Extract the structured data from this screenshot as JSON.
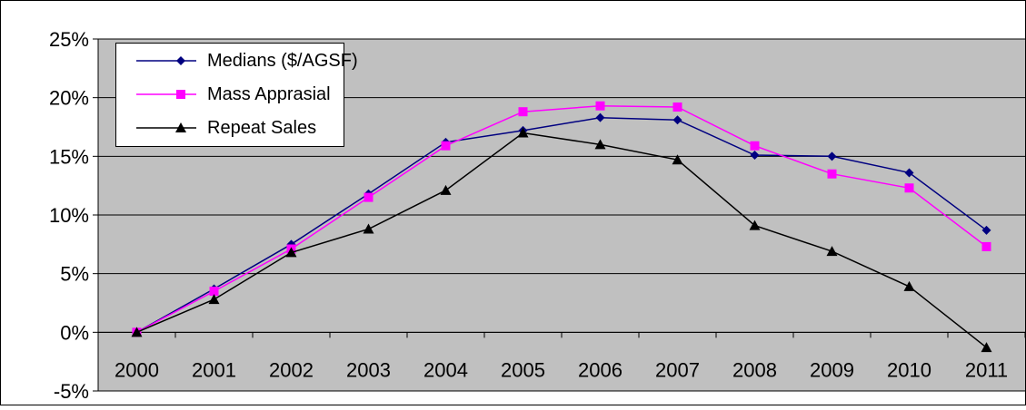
{
  "chart_data": {
    "type": "line",
    "title": "",
    "xlabel": "",
    "ylabel": "",
    "categories": [
      "2000",
      "2001",
      "2002",
      "2003",
      "2004",
      "2005",
      "2006",
      "2007",
      "2008",
      "2009",
      "2010",
      "2011"
    ],
    "ylim": [
      -5,
      25
    ],
    "yticks": [
      -5,
      0,
      5,
      10,
      15,
      20,
      25
    ],
    "ytick_labels": [
      "-5%",
      "0%",
      "5%",
      "10%",
      "15%",
      "20%",
      "25%"
    ],
    "grid": true,
    "plot_background": "#c0c0c0",
    "legend_position": "top-left",
    "series": [
      {
        "name": "Medians ($/AGSF)",
        "color": "#000080",
        "marker": "diamond",
        "values": [
          0.0,
          3.7,
          7.5,
          11.8,
          16.2,
          17.2,
          18.3,
          18.1,
          15.1,
          15.0,
          13.6,
          8.7
        ]
      },
      {
        "name": "Mass Apprasial",
        "color": "#ff00ff",
        "marker": "square",
        "values": [
          0.0,
          3.5,
          7.1,
          11.5,
          15.9,
          18.8,
          19.3,
          19.2,
          15.9,
          13.5,
          12.3,
          7.3
        ]
      },
      {
        "name": "Repeat Sales",
        "color": "#000000",
        "marker": "triangle",
        "values": [
          0.0,
          2.8,
          6.8,
          8.8,
          12.1,
          17.0,
          16.0,
          14.7,
          9.1,
          6.9,
          3.9,
          -1.3
        ]
      }
    ]
  }
}
